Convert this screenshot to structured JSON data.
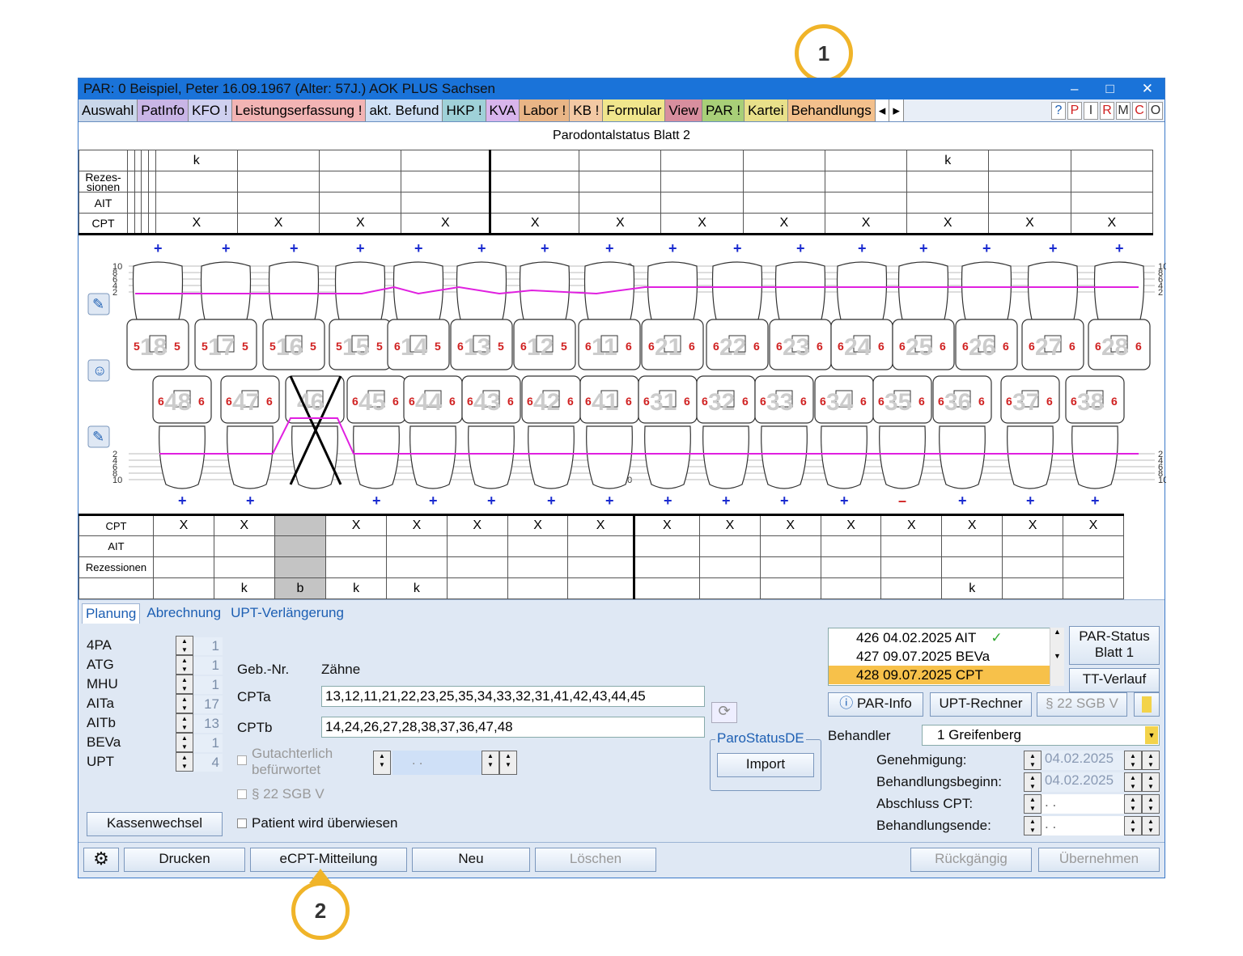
{
  "window": {
    "title": "PAR: 0  Beispiel, Peter  16.09.1967 (Alter: 57J.)  AOK PLUS Sachsen",
    "controls": [
      "–",
      "□",
      "✕"
    ]
  },
  "tabs": [
    {
      "label": "Auswahl",
      "color": "#c9d7ea"
    },
    {
      "label": "PatInfo",
      "color": "#c9b5e6"
    },
    {
      "label": "KFO !",
      "color": "#cfd0f0"
    },
    {
      "label": "Leistungserfassung !",
      "color": "#f2b4b4"
    },
    {
      "label": "akt. Befund",
      "color": "#cfe0f5"
    },
    {
      "label": "HKP !",
      "color": "#9fd1d8"
    },
    {
      "label": "KVA",
      "color": "#d8b5ec"
    },
    {
      "label": "Labor !",
      "color": "#e9b586"
    },
    {
      "label": "KB !",
      "color": "#f3c9a4"
    },
    {
      "label": "Formular",
      "color": "#f0e68c"
    },
    {
      "label": "View",
      "color": "#d88e9e"
    },
    {
      "label": "PAR !",
      "color": "#a8cf78"
    },
    {
      "label": "Kartei",
      "color": "#e8e08a"
    },
    {
      "label": "Behandlungs",
      "color": "#f3c08c"
    }
  ],
  "toolbar_letters": [
    "?",
    "P",
    "I",
    "R",
    "M",
    "C",
    "O"
  ],
  "tab_scroll": [
    "◂",
    "▸"
  ],
  "chart_title": "Parodontalstatus Blatt 2",
  "upper_table": {
    "row_labels": [
      "",
      "Rezes-\nsionen",
      "AIT",
      "CPT"
    ],
    "k_row": [
      "",
      "",
      "",
      "",
      "k",
      "",
      "",
      "",
      "",
      "",
      "",
      "",
      "",
      "k",
      "",
      ""
    ],
    "cpt_row": [
      "",
      "",
      "",
      "",
      "X",
      "X",
      "X",
      "X",
      "X",
      "X",
      "X",
      "X",
      "X",
      "X",
      "X",
      "X"
    ]
  },
  "upper_teeth": {
    "numbers": [
      "18",
      "17",
      "16",
      "15",
      "14",
      "13",
      "12",
      "11",
      "21",
      "22",
      "23",
      "24",
      "25",
      "26",
      "27",
      "28"
    ],
    "left_values": [
      "5",
      "5",
      "5",
      "5",
      "6",
      "6",
      "6",
      "6",
      "6",
      "6",
      "6",
      "6",
      "6",
      "6",
      "6",
      "6"
    ],
    "right_values": [
      "5",
      "5",
      "5",
      "5",
      "5",
      "5",
      "5",
      "6",
      "6",
      "6",
      "6",
      "6",
      "6",
      "6",
      "6",
      "6"
    ],
    "markers": [
      "+",
      "+",
      "+",
      "+",
      "+",
      "+",
      "+",
      "+",
      "+",
      "+",
      "+",
      "+",
      "+",
      "+",
      "+",
      "+"
    ]
  },
  "lower_teeth": {
    "numbers": [
      "48",
      "47",
      "46",
      "45",
      "44",
      "43",
      "42",
      "41",
      "31",
      "32",
      "33",
      "34",
      "35",
      "36",
      "37",
      "38"
    ],
    "values": [
      "6",
      "6",
      "",
      "6",
      "6",
      "6",
      "6",
      "6",
      "6",
      "6",
      "6",
      "6",
      "6",
      "6",
      "6",
      "6"
    ],
    "markers": [
      "+",
      "+",
      "",
      "+",
      "+",
      "+",
      "+",
      "+",
      "+",
      "+",
      "+",
      "+",
      "–",
      "+",
      "+",
      "+"
    ]
  },
  "scale_labels": [
    "10",
    "8",
    "6",
    "4",
    "2"
  ],
  "lower_table": {
    "row_labels": [
      "CPT",
      "AIT",
      "Rezessionen",
      ""
    ],
    "cpt_row": [
      "X",
      "X",
      "",
      "X",
      "X",
      "X",
      "X",
      "X",
      "X",
      "X",
      "X",
      "X",
      "X",
      "X",
      "X",
      "X"
    ],
    "k_row": [
      "",
      "k",
      "b",
      "k",
      "k",
      "",
      "",
      "",
      "",
      "",
      "",
      "",
      "",
      "k",
      "",
      ""
    ]
  },
  "bottom_tabs": [
    "Planung",
    "Abrechnung",
    "UPT-Verlängerung"
  ],
  "counters": [
    {
      "label": "4PA",
      "value": "1"
    },
    {
      "label": "ATG",
      "value": "1"
    },
    {
      "label": "MHU",
      "value": "1"
    },
    {
      "label": "AITa",
      "value": "17"
    },
    {
      "label": "AITb",
      "value": "13"
    },
    {
      "label": "BEVa",
      "value": "1"
    },
    {
      "label": "UPT",
      "value": "4"
    }
  ],
  "geb_header": {
    "geb": "Geb.-Nr.",
    "teeth": "Zähne"
  },
  "cpta": {
    "label": "CPTa",
    "value": "13,12,11,21,22,23,25,35,34,33,32,31,41,42,43,44,45"
  },
  "cptb": {
    "label": "CPTb",
    "value": "14,24,26,27,28,38,37,36,47,48"
  },
  "gutachterlich": "Gutachterlich\nbefürwortet",
  "date_placeholder": " .  .",
  "sgb_check": "§ 22 SGB V",
  "patient_ueberwiesen": "Patient wird überwiesen",
  "kassenwechsel": "Kassenwechsel",
  "parostatus_group": "ParoStatusDE",
  "import_btn": "Import",
  "entries": [
    {
      "text": "426 04.02.2025  AIT",
      "check": "✓"
    },
    {
      "text": "427 09.07.2025  BEVa",
      "check": ""
    },
    {
      "text": "428 09.07.2025  CPT",
      "check": ""
    }
  ],
  "par_status_btn": "PAR-Status\nBlatt 1",
  "tt_verlauf_btn": "TT-Verlauf",
  "par_info_btn": "PAR-Info",
  "upt_rechner_btn": "UPT-Rechner",
  "sgb_btn": "§ 22 SGB V",
  "behandler_label": "Behandler",
  "behandler_value": "1 Greifenberg",
  "dates": [
    {
      "label": "Genehmigung:",
      "value": "04.02.2025"
    },
    {
      "label": "Behandlungsbeginn:",
      "value": "04.02.2025"
    },
    {
      "label": "Abschluss CPT:",
      "value": " .  ."
    },
    {
      "label": "Behandlungsende:",
      "value": " .  ."
    }
  ],
  "footer": {
    "drucken": "Drucken",
    "ecpt": "eCPT-Mitteilung",
    "neu": "Neu",
    "loeschen": "Löschen",
    "rueckgaengig": "Rückgängig",
    "uebernehmen": "Übernehmen"
  },
  "callouts": [
    "1",
    "2"
  ],
  "colors": {
    "accent": "#1a73d9",
    "probing_line": "#e020e0",
    "callout": "#f0b429"
  }
}
